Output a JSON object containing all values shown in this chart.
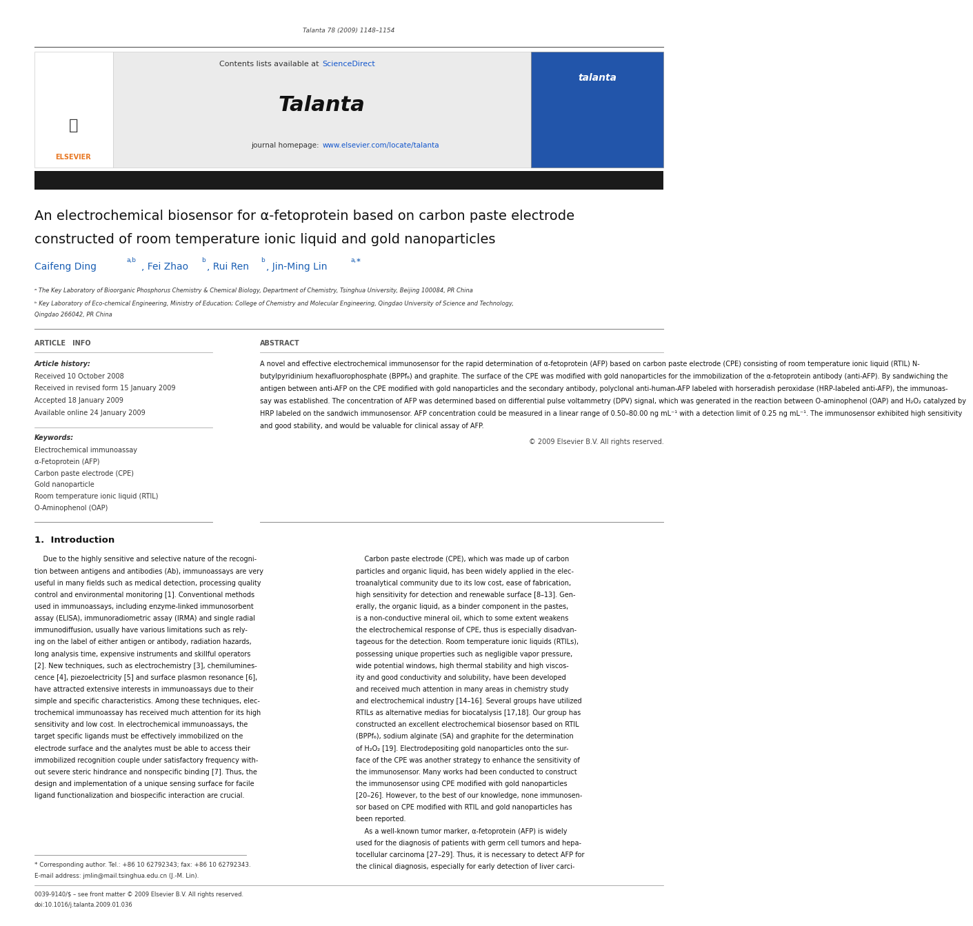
{
  "bg_color": "#ffffff",
  "page_width": 9.92,
  "page_height": 13.23,
  "journal_ref": "Talanta 78 (2009) 1148–1154",
  "journal_name": "Talanta",
  "contents_text": "Contents lists available at ",
  "science_direct_text": "ScienceDirect",
  "science_direct_color": "#1155cc",
  "journal_homepage_prefix": "journal homepage: ",
  "journal_homepage_url": "www.elsevier.com/locate/talanta",
  "journal_homepage_color": "#1155cc",
  "header_bg": "#ebebeb",
  "dark_bar_color": "#1a1a1a",
  "title_line1": "An electrochemical biosensor for α-fetoprotein based on carbon paste electrode",
  "title_line2": "constructed of room temperature ionic liquid and gold nanoparticles",
  "affil_a": "ᵃ The Key Laboratory of Bioorganic Phosphorus Chemistry & Chemical Biology, Department of Chemistry, Tsinghua University, Beijing 100084, PR China",
  "affil_b1": "ᵇ Key Laboratory of Eco-chemical Engineering, Ministry of Education; College of Chemistry and Molecular Engineering, Qingdao University of Science and Technology,",
  "affil_b2": "Qingdao 266042, PR China",
  "article_info_header": "ARTICLE   INFO",
  "abstract_header": "ABSTRACT",
  "article_history_label": "Article history:",
  "received1": "Received 10 October 2008",
  "received2": "Received in revised form 15 January 2009",
  "accepted": "Accepted 18 January 2009",
  "available": "Available online 24 January 2009",
  "keywords_label": "Keywords:",
  "keywords": [
    "Electrochemical immunoassay",
    "α-Fetoprotein (AFP)",
    "Carbon paste electrode (CPE)",
    "Gold nanoparticle",
    "Room temperature ionic liquid (RTIL)",
    "O-Aminophenol (OAP)"
  ],
  "copyright": "© 2009 Elsevier B.V. All rights reserved.",
  "intro_header": "1.  Introduction",
  "footnote_star": "* Corresponding author. Tel.: +86 10 62792343; fax: +86 10 62792343.",
  "footnote_email": "E-mail address: jmlin@mail.tsinghua.edu.cn (J.-M. Lin).",
  "footer_issn": "0039-9140/$ – see front matter © 2009 Elsevier B.V. All rights reserved.",
  "footer_doi": "doi:10.1016/j.talanta.2009.01.036",
  "abstract_lines": [
    "A novel and effective electrochemical immunosensor for the rapid determination of α-fetoprotein (AFP) based on carbon paste electrode (CPE) consisting of room temperature ionic liquid (RTIL) N-",
    "butylpyridinium hexafluorophosphate (BPPf₆) and graphite. The surface of the CPE was modified with gold nanoparticles for the immobilization of the α-fetoprotein antibody (anti-AFP). By sandwiching the",
    "antigen between anti-AFP on the CPE modified with gold nanoparticles and the secondary antibody, polyclonal anti-human-AFP labeled with horseradish peroxidase (HRP-labeled anti-AFP), the immunoas-",
    "say was established. The concentration of AFP was determined based on differential pulse voltammetry (DPV) signal, which was generated in the reaction between O-aminophenol (OAP) and H₂O₂ catalyzed by",
    "HRP labeled on the sandwich immunosensor. AFP concentration could be measured in a linear range of 0.50–80.00 ng mL⁻¹ with a detection limit of 0.25 ng mL⁻¹. The immunosensor exhibited high sensitivity",
    "and good stability, and would be valuable for clinical assay of AFP."
  ],
  "intro_col1_lines": [
    "    Due to the highly sensitive and selective nature of the recogni-",
    "tion between antigens and antibodies (Ab), immunoassays are very",
    "useful in many fields such as medical detection, processing quality",
    "control and environmental monitoring [1]. Conventional methods",
    "used in immunoassays, including enzyme-linked immunosorbent",
    "assay (ELISA), immunoradiometric assay (IRMA) and single radial",
    "immunodiffusion, usually have various limitations such as rely-",
    "ing on the label of either antigen or antibody, radiation hazards,",
    "long analysis time, expensive instruments and skillful operators",
    "[2]. New techniques, such as electrochemistry [3], chemilumines-",
    "cence [4], piezoelectricity [5] and surface plasmon resonance [6],",
    "have attracted extensive interests in immunoassays due to their",
    "simple and specific characteristics. Among these techniques, elec-",
    "trochemical immunoassay has received much attention for its high",
    "sensitivity and low cost. In electrochemical immunoassays, the",
    "target specific ligands must be effectively immobilized on the",
    "electrode surface and the analytes must be able to access their",
    "immobilized recognition couple under satisfactory frequency with-",
    "out severe steric hindrance and nonspecific binding [7]. Thus, the",
    "design and implementation of a unique sensing surface for facile",
    "ligand functionalization and biospecific interaction are crucial."
  ],
  "intro_col2_lines": [
    "    Carbon paste electrode (CPE), which was made up of carbon",
    "particles and organic liquid, has been widely applied in the elec-",
    "troanalytical community due to its low cost, ease of fabrication,",
    "high sensitivity for detection and renewable surface [8–13]. Gen-",
    "erally, the organic liquid, as a binder component in the pastes,",
    "is a non-conductive mineral oil, which to some extent weakens",
    "the electrochemical response of CPE, thus is especially disadvan-",
    "tageous for the detection. Room temperature ionic liquids (RTILs),",
    "possessing unique properties such as negligible vapor pressure,",
    "wide potential windows, high thermal stability and high viscos-",
    "ity and good conductivity and solubility, have been developed",
    "and received much attention in many areas in chemistry study",
    "and electrochemical industry [14–16]. Several groups have utilized",
    "RTILs as alternative medias for biocatalysis [17,18]. Our group has",
    "constructed an excellent electrochemical biosensor based on RTIL",
    "(BPPf₆), sodium alginate (SA) and graphite for the determination",
    "of H₂O₂ [19]. Electrodepositing gold nanoparticles onto the sur-",
    "face of the CPE was another strategy to enhance the sensitivity of",
    "the immunosensor. Many works had been conducted to construct",
    "the immunosensor using CPE modified with gold nanoparticles",
    "[20–26]. However, to the best of our knowledge, none immunosen-",
    "sor based on CPE modified with RTIL and gold nanoparticles has",
    "been reported.",
    "    As a well-known tumor marker, α-fetoprotein (AFP) is widely",
    "used for the diagnosis of patients with germ cell tumors and hepa-",
    "tocellular carcinoma [27–29]. Thus, it is necessary to detect AFP for",
    "the clinical diagnosis, especially for early detection of liver carci-"
  ]
}
